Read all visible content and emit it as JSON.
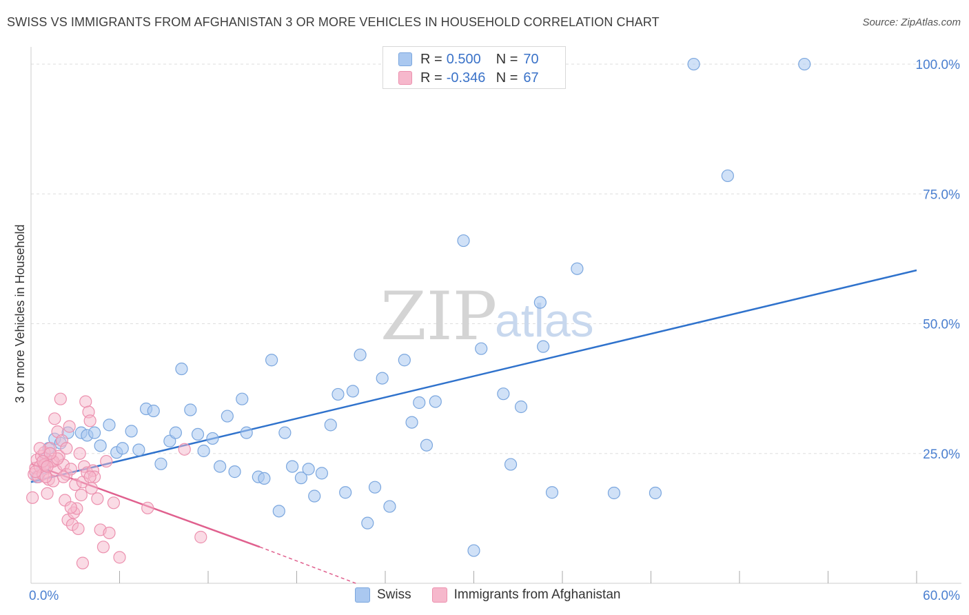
{
  "title": "SWISS VS IMMIGRANTS FROM AFGHANISTAN 3 OR MORE VEHICLES IN HOUSEHOLD CORRELATION CHART",
  "source": "Source: ZipAtlas.com",
  "watermark": {
    "zip": "ZIP",
    "atlas": "atlas"
  },
  "legend": {
    "swiss": {
      "r_label": "R =",
      "r_value": "0.500",
      "n_label": "N =",
      "n_value": "70"
    },
    "afghan": {
      "r_label": "R =",
      "r_value": "-0.346",
      "n_label": "N =",
      "n_value": "67"
    }
  },
  "colors": {
    "swiss_fill": "#aac8f0",
    "swiss_stroke": "#7aa6de",
    "swiss_line": "#2f72cc",
    "afghan_fill": "#f6b8cc",
    "afghan_stroke": "#ec90ae",
    "afghan_line": "#e0608e",
    "axis_text": "#4a7fd0",
    "grid": "#dddddd"
  },
  "chart_data": {
    "type": "scatter",
    "title": "SWISS VS IMMIGRANTS FROM AFGHANISTAN 3 OR MORE VEHICLES IN HOUSEHOLD CORRELATION CHART",
    "xlabel": "",
    "ylabel": "3 or more Vehicles in Household",
    "xlim": [
      0,
      60
    ],
    "ylim": [
      0,
      102
    ],
    "x_tick_labels": [
      {
        "value": 0,
        "label": "0.0%"
      },
      {
        "value": 60,
        "label": "60.0%"
      }
    ],
    "y_tick_labels": [
      {
        "value": 25,
        "label": "25.0%"
      },
      {
        "value": 50,
        "label": "50.0%"
      },
      {
        "value": 75,
        "label": "75.0%"
      },
      {
        "value": 100,
        "label": "100.0%"
      }
    ],
    "x_minor_ticks": [
      6,
      12,
      18,
      24,
      30,
      36,
      42,
      48,
      54,
      60
    ],
    "grid": true,
    "legend_position": "top-center",
    "series": [
      {
        "name": "Swiss",
        "trend": {
          "x": [
            0,
            60
          ],
          "y": [
            19.5,
            60.3
          ]
        },
        "points": [
          [
            0.4,
            20.5
          ],
          [
            0.8,
            22.2
          ],
          [
            1.2,
            26.0
          ],
          [
            1.6,
            27.8
          ],
          [
            2.5,
            29.0
          ],
          [
            3.4,
            29.0
          ],
          [
            3.8,
            28.5
          ],
          [
            4.3,
            29.0
          ],
          [
            4.7,
            26.5
          ],
          [
            5.3,
            30.5
          ],
          [
            5.8,
            25.2
          ],
          [
            6.2,
            26.0
          ],
          [
            6.8,
            29.3
          ],
          [
            7.3,
            25.7
          ],
          [
            7.8,
            33.6
          ],
          [
            8.3,
            33.2
          ],
          [
            8.8,
            23.0
          ],
          [
            9.4,
            27.4
          ],
          [
            9.8,
            29.0
          ],
          [
            10.2,
            41.3
          ],
          [
            10.8,
            33.4
          ],
          [
            11.3,
            28.7
          ],
          [
            11.7,
            25.5
          ],
          [
            12.3,
            27.9
          ],
          [
            12.8,
            22.5
          ],
          [
            13.3,
            32.2
          ],
          [
            13.8,
            21.5
          ],
          [
            14.3,
            35.5
          ],
          [
            14.6,
            29.0
          ],
          [
            15.4,
            20.5
          ],
          [
            15.8,
            20.2
          ],
          [
            16.3,
            43.0
          ],
          [
            16.8,
            13.9
          ],
          [
            17.2,
            29.0
          ],
          [
            17.7,
            22.5
          ],
          [
            18.3,
            20.3
          ],
          [
            18.8,
            22.0
          ],
          [
            19.2,
            16.8
          ],
          [
            19.7,
            21.2
          ],
          [
            20.3,
            30.5
          ],
          [
            20.8,
            36.4
          ],
          [
            21.3,
            17.5
          ],
          [
            21.8,
            37.0
          ],
          [
            22.3,
            44.0
          ],
          [
            22.8,
            11.6
          ],
          [
            23.3,
            18.5
          ],
          [
            23.8,
            39.5
          ],
          [
            24.3,
            14.8
          ],
          [
            25.3,
            43.0
          ],
          [
            25.8,
            31.0
          ],
          [
            26.3,
            34.8
          ],
          [
            26.8,
            26.6
          ],
          [
            27.4,
            35.0
          ],
          [
            29.3,
            66.0
          ],
          [
            30.0,
            6.3
          ],
          [
            30.5,
            45.2
          ],
          [
            32.0,
            36.5
          ],
          [
            32.5,
            22.9
          ],
          [
            33.2,
            34.0
          ],
          [
            34.5,
            54.1
          ],
          [
            34.7,
            45.6
          ],
          [
            35.3,
            17.5
          ],
          [
            37.0,
            60.6
          ],
          [
            39.5,
            17.4
          ],
          [
            42.3,
            17.4
          ],
          [
            44.9,
            100.0
          ],
          [
            47.2,
            78.5
          ],
          [
            52.4,
            100.0
          ],
          [
            2.0,
            27.0
          ],
          [
            1.0,
            24.0
          ]
        ]
      },
      {
        "name": "Immigrants from Afghanistan",
        "trend": {
          "x": [
            0,
            15.5
          ],
          "y": [
            23.0,
            7.0
          ]
        },
        "trend_dashed": {
          "x": [
            15.5,
            22.0
          ],
          "y": [
            7.0,
            0.0
          ]
        },
        "points": [
          [
            0.1,
            16.5
          ],
          [
            0.2,
            21.0
          ],
          [
            0.3,
            22.2
          ],
          [
            0.4,
            23.8
          ],
          [
            0.5,
            20.5
          ],
          [
            0.6,
            22.5
          ],
          [
            0.7,
            24.5
          ],
          [
            0.8,
            21.0
          ],
          [
            0.9,
            25.2
          ],
          [
            1.0,
            23.0
          ],
          [
            1.1,
            17.3
          ],
          [
            1.2,
            20.0
          ],
          [
            1.3,
            26.0
          ],
          [
            1.4,
            23.5
          ],
          [
            1.5,
            19.7
          ],
          [
            1.6,
            31.7
          ],
          [
            1.7,
            21.7
          ],
          [
            1.8,
            29.2
          ],
          [
            1.9,
            24.5
          ],
          [
            2.0,
            35.5
          ],
          [
            2.1,
            27.5
          ],
          [
            2.2,
            22.8
          ],
          [
            2.3,
            16.0
          ],
          [
            2.4,
            21.0
          ],
          [
            2.5,
            12.2
          ],
          [
            2.6,
            30.2
          ],
          [
            2.7,
            22.0
          ],
          [
            2.8,
            11.3
          ],
          [
            2.9,
            13.6
          ],
          [
            3.0,
            19.0
          ],
          [
            3.1,
            14.4
          ],
          [
            3.2,
            10.5
          ],
          [
            3.3,
            25.0
          ],
          [
            3.4,
            17.0
          ],
          [
            3.5,
            19.5
          ],
          [
            3.6,
            22.5
          ],
          [
            3.7,
            35.0
          ],
          [
            3.8,
            21.3
          ],
          [
            3.9,
            33.0
          ],
          [
            4.0,
            31.3
          ],
          [
            4.1,
            18.3
          ],
          [
            4.2,
            21.7
          ],
          [
            4.3,
            20.5
          ],
          [
            4.5,
            16.3
          ],
          [
            4.7,
            10.3
          ],
          [
            4.9,
            7.0
          ],
          [
            5.1,
            23.5
          ],
          [
            5.3,
            9.7
          ],
          [
            5.6,
            15.5
          ],
          [
            6.0,
            5.0
          ],
          [
            7.9,
            14.5
          ],
          [
            10.4,
            25.8
          ],
          [
            11.5,
            8.9
          ],
          [
            1.0,
            20.5
          ],
          [
            0.6,
            26.0
          ],
          [
            1.5,
            23.5
          ],
          [
            2.4,
            26.0
          ],
          [
            0.9,
            22.8
          ],
          [
            1.8,
            24.0
          ],
          [
            2.2,
            20.5
          ],
          [
            3.5,
            3.9
          ],
          [
            0.3,
            21.5
          ],
          [
            1.3,
            25.0
          ],
          [
            2.7,
            14.6
          ],
          [
            0.8,
            23.5
          ],
          [
            1.1,
            22.5
          ],
          [
            4.0,
            20.5
          ]
        ]
      }
    ]
  }
}
